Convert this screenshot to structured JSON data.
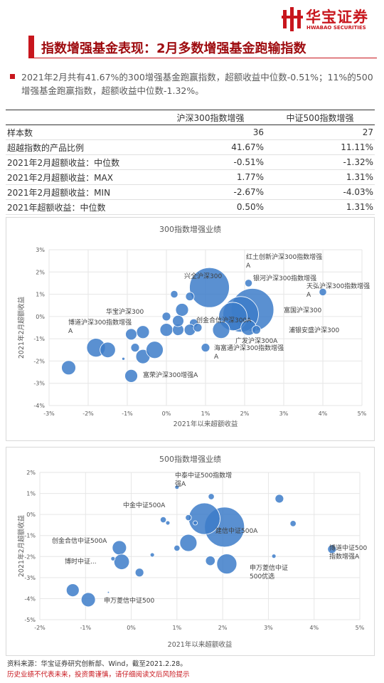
{
  "header": {
    "logo_cn": "华宝证券",
    "logo_en": "HWABAO SECURITIES"
  },
  "title": "指数增强基金表现：2月多数增强基金跑输指数",
  "summary": "2021年2月共有41.67%的300增强基金跑赢指数，超额收益中位数-0.51%；11%的500增强基金跑赢指数，超额收益中位数-1.32%。",
  "table": {
    "columns": [
      "沪深300指数增强",
      "中证500指数增强"
    ],
    "rows": [
      [
        "样本数",
        "36",
        "27"
      ],
      [
        "超越指数的产品比例",
        "41.67%",
        "11.11%"
      ],
      [
        "2021年2月超额收益：中位数",
        "-0.51%",
        "-1.32%"
      ],
      [
        "2021年2月超额收益：MAX",
        "1.77%",
        "1.31%"
      ],
      [
        "2021年2月超额收益：MIN",
        "-2.67%",
        "-4.03%"
      ],
      [
        "2021年超额收益：中位数",
        "0.50%",
        "1.31%"
      ]
    ]
  },
  "chart_data": [
    {
      "type": "bubble",
      "title": "300指数增强业绩",
      "x_label": "2021年以来超额收益",
      "y_label": "2021年2月超额收益",
      "color": "#3d7cc9",
      "grid": true,
      "xlim": [
        -3,
        5
      ],
      "ylim": [
        -4,
        3
      ],
      "xticks": [
        {
          "value": -3,
          "label": "-3%"
        },
        {
          "value": -2,
          "label": "-2%"
        },
        {
          "value": -1,
          "label": "-1%"
        },
        {
          "value": 0,
          "label": "0%"
        },
        {
          "value": 1,
          "label": "1%"
        },
        {
          "value": 2,
          "label": "2%"
        },
        {
          "value": 3,
          "label": "3%"
        },
        {
          "value": 4,
          "label": "4%"
        },
        {
          "value": 5,
          "label": "5%"
        }
      ],
      "yticks": [
        {
          "value": -4,
          "label": "-4%"
        },
        {
          "value": -3,
          "label": "-3%"
        },
        {
          "value": -2,
          "label": "-2%"
        },
        {
          "value": -1,
          "label": "-1%"
        },
        {
          "value": 0,
          "label": "0%"
        },
        {
          "value": 1,
          "label": "1%"
        },
        {
          "value": 2,
          "label": "2%"
        },
        {
          "value": 3,
          "label": "3%"
        }
      ],
      "x": [
        1.1,
        2.2,
        1.9,
        1.7,
        1.4,
        2.1,
        4.0,
        2.1,
        0.2,
        0.6,
        0.4,
        0.7,
        0.0,
        0.0,
        0.3,
        0.6,
        0.8,
        -0.6,
        -0.9,
        -0.8,
        -0.6,
        -0.3,
        -1.8,
        -1.5,
        -2.5,
        -0.9,
        1.0,
        -1.1,
        2.3,
        0.3
      ],
      "values": [
        1.3,
        0.3,
        0.1,
        0.0,
        -0.6,
        -0.5,
        1.1,
        1.5,
        1.0,
        0.9,
        0.3,
        -0.3,
        0.0,
        -0.6,
        -0.6,
        -0.6,
        -0.5,
        -0.7,
        -0.8,
        -1.4,
        -1.8,
        -1.5,
        -1.4,
        -1.5,
        -2.3,
        -2.67,
        -1.4,
        -1.9,
        -0.6,
        -0.2
      ],
      "sizes": [
        87,
        100,
        69,
        44,
        16,
        13,
        3,
        3,
        3,
        4,
        9,
        4,
        4,
        9,
        7,
        7,
        4,
        9,
        7,
        4,
        11,
        16,
        19,
        13,
        11,
        9,
        4,
        0.5,
        4,
        7
      ],
      "annotations": [
        "兴全沪深300",
        "红土创新沪深300指数增强A",
        "银河沪深300指数增强",
        "天弘沪深300指数增强A",
        "富国沪深300",
        "浦银安盛沪深300",
        "创金合信沪深300A",
        "广发沪深300A",
        "海富通沪深300指数增强A",
        "华宝沪深300",
        "博道沪深300指数增强A",
        "富荣沪深300增强A"
      ]
    },
    {
      "type": "bubble",
      "title": "500指数增强业绩",
      "x_label": "2021年以来超额收益",
      "y_label": "2021年2月超额收益",
      "color": "#3d7cc9",
      "grid": true,
      "xlim": [
        -2,
        5
      ],
      "ylim": [
        -5,
        2
      ],
      "xticks": [
        {
          "value": -2,
          "label": "-2%"
        },
        {
          "value": -1,
          "label": "-1%"
        },
        {
          "value": 0,
          "label": "0%"
        },
        {
          "value": 1,
          "label": "1%"
        },
        {
          "value": 2,
          "label": "2%"
        },
        {
          "value": 3,
          "label": "3%"
        },
        {
          "value": 4,
          "label": "4%"
        },
        {
          "value": 5,
          "label": "5%"
        }
      ],
      "yticks": [
        {
          "value": -5,
          "label": "-5%"
        },
        {
          "value": -4,
          "label": "-4%"
        },
        {
          "value": -3,
          "label": "-3%"
        },
        {
          "value": -2,
          "label": "-2%"
        },
        {
          "value": -1,
          "label": "-1%"
        },
        {
          "value": 0,
          "label": "0%"
        },
        {
          "value": 1,
          "label": "1%"
        },
        {
          "value": 2,
          "label": "2%"
        }
      ],
      "x": [
        2.04,
        1.6,
        1.0,
        1.75,
        3.24,
        3.54,
        0.7,
        0.8,
        1.25,
        1.4,
        1.25,
        1.0,
        1.73,
        2.09,
        3.12,
        4.39,
        -0.26,
        -0.21,
        -0.4,
        0.46,
        0.18,
        -1.28,
        -0.94,
        -0.5
      ],
      "values": [
        -0.6,
        -0.2,
        1.3,
        0.85,
        0.75,
        -0.43,
        -0.25,
        -0.4,
        -0.15,
        -0.4,
        -1.35,
        -1.6,
        -2.2,
        -2.35,
        -1.98,
        -1.65,
        -1.58,
        -2.25,
        -2.1,
        -1.92,
        -2.76,
        -3.6,
        -4.05,
        -3.7
      ],
      "sizes": [
        87,
        54,
        1,
        2,
        4,
        2,
        2,
        1,
        2,
        1,
        16,
        2,
        5,
        22,
        1,
        4,
        11,
        13,
        1,
        1,
        4,
        9,
        11,
        0.2
      ],
      "annotations": [
        "中泰中证500指数增强A",
        "中金中证500A",
        "建信中证500A",
        "博道中证500指数增强A",
        "创金合信中证500A",
        "博时中证...",
        "申万菱信中证500优选",
        "申万菱信中证500"
      ]
    }
  ],
  "footer": {
    "source": "资料来源：华宝证券研究创新部、Wind，截至2021.2.28。",
    "disclaimer": "历史业绩不代表未来，投资需谨慎，请仔细阅读文后风险提示"
  }
}
